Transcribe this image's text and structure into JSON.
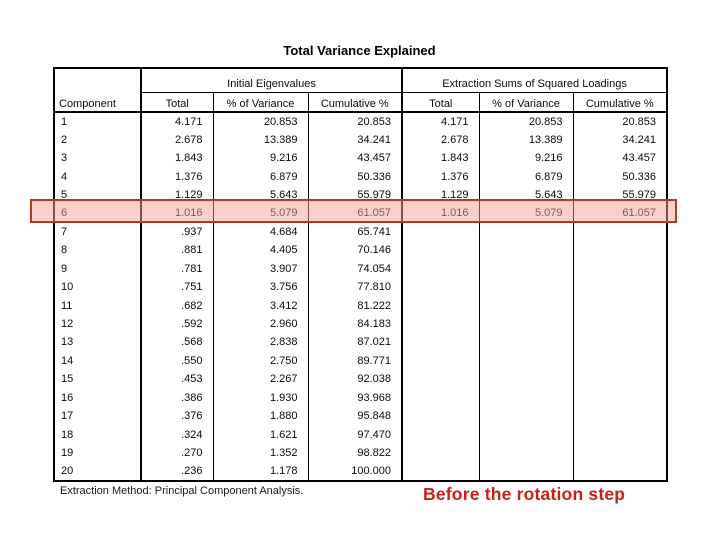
{
  "title": "Total Variance Explained",
  "footnote": "Extraction Method: Principal Component Analysis.",
  "caption": "Before the rotation step",
  "colors": {
    "highlight_fill": "#f8d2c2",
    "highlight_border": "#b03a2a",
    "caption_red": "#cc2018"
  },
  "table": {
    "corner_header": "Component",
    "group_headers": [
      "Initial Eigenvalues",
      "Extraction Sums of Squared Loadings"
    ],
    "sub_headers": [
      "Total",
      "% of Variance",
      "Cumulative %",
      "Total",
      "% of Variance",
      "Cumulative %"
    ],
    "highlight_row_index": 5,
    "rows": [
      [
        "1",
        "4.171",
        "20.853",
        "20.853",
        "4.171",
        "20.853",
        "20.853"
      ],
      [
        "2",
        "2.678",
        "13.389",
        "34.241",
        "2.678",
        "13.389",
        "34.241"
      ],
      [
        "3",
        "1.843",
        "9.216",
        "43.457",
        "1.843",
        "9.216",
        "43.457"
      ],
      [
        "4",
        "1.376",
        "6.879",
        "50.336",
        "1.376",
        "6.879",
        "50.336"
      ],
      [
        "5",
        "1.129",
        "5.643",
        "55.979",
        "1.129",
        "5.643",
        "55.979"
      ],
      [
        "6",
        "1.016",
        "5.079",
        "61.057",
        "1.016",
        "5.079",
        "61.057"
      ],
      [
        "7",
        ".937",
        "4.684",
        "65.741",
        "",
        "",
        ""
      ],
      [
        "8",
        ".881",
        "4.405",
        "70.146",
        "",
        "",
        ""
      ],
      [
        "9",
        ".781",
        "3.907",
        "74.054",
        "",
        "",
        ""
      ],
      [
        "10",
        ".751",
        "3.756",
        "77.810",
        "",
        "",
        ""
      ],
      [
        "11",
        ".682",
        "3.412",
        "81.222",
        "",
        "",
        ""
      ],
      [
        "12",
        ".592",
        "2.960",
        "84.183",
        "",
        "",
        ""
      ],
      [
        "13",
        ".568",
        "2.838",
        "87.021",
        "",
        "",
        ""
      ],
      [
        "14",
        ".550",
        "2.750",
        "89.771",
        "",
        "",
        ""
      ],
      [
        "15",
        ".453",
        "2.267",
        "92.038",
        "",
        "",
        ""
      ],
      [
        "16",
        ".386",
        "1.930",
        "93.968",
        "",
        "",
        ""
      ],
      [
        "17",
        ".376",
        "1.880",
        "95.848",
        "",
        "",
        ""
      ],
      [
        "18",
        ".324",
        "1.621",
        "97.470",
        "",
        "",
        ""
      ],
      [
        "19",
        ".270",
        "1.352",
        "98.822",
        "",
        "",
        ""
      ],
      [
        "20",
        ".236",
        "1.178",
        "100.000",
        "",
        "",
        ""
      ]
    ]
  }
}
